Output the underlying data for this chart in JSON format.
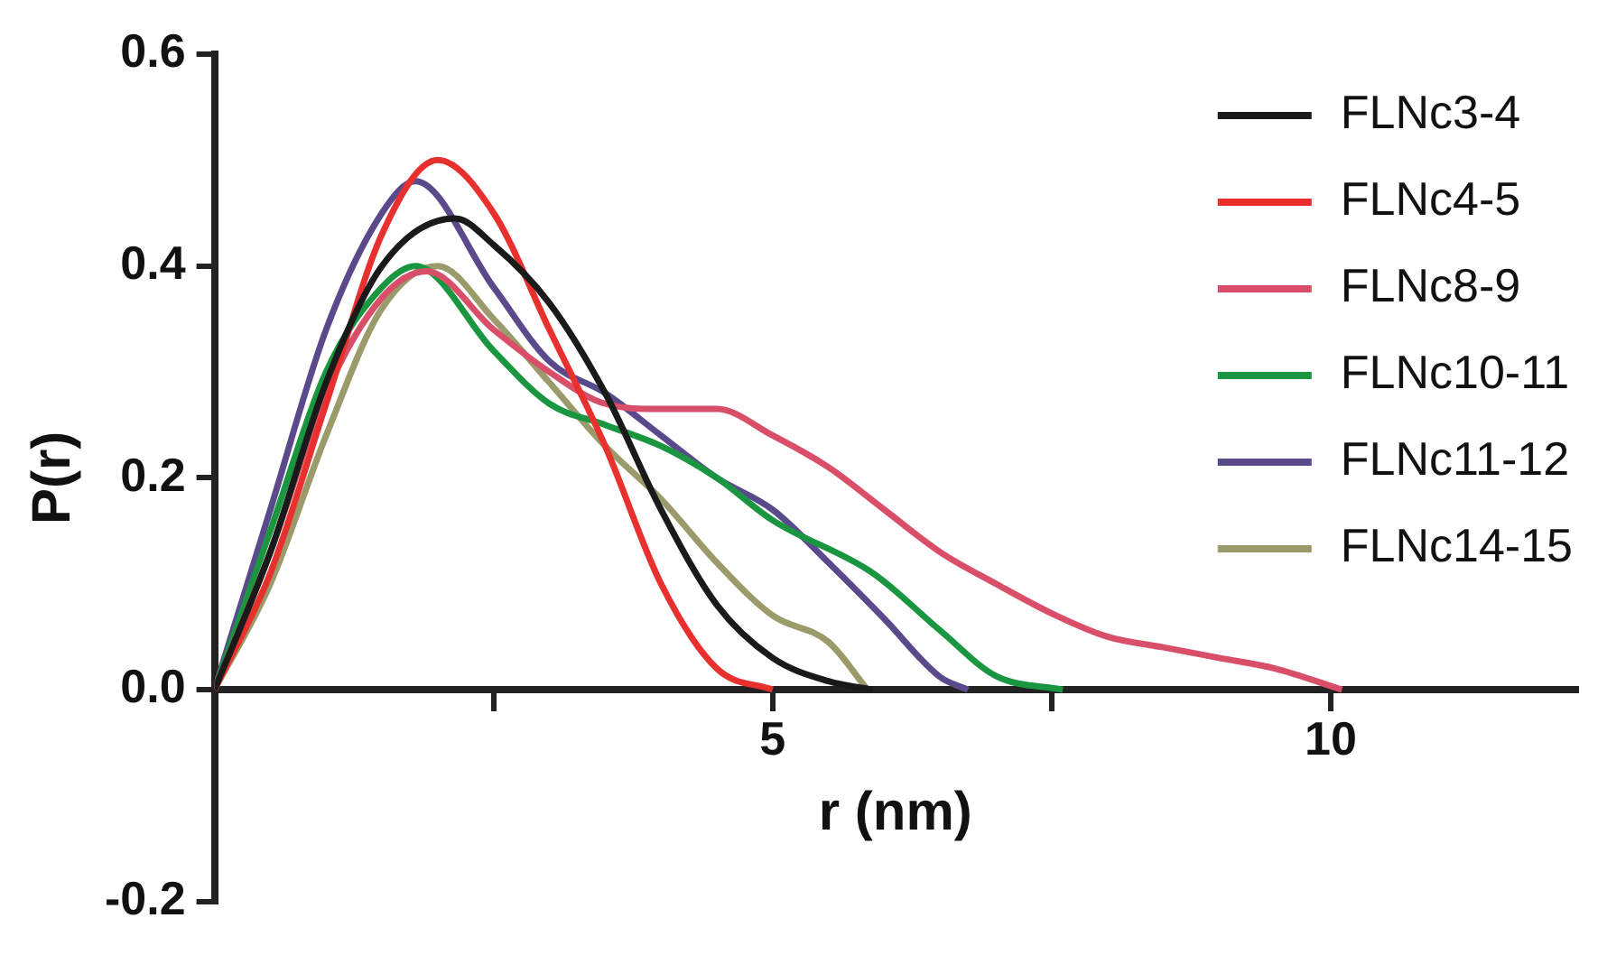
{
  "chart_data": {
    "type": "line",
    "xlabel": "r (nm)",
    "ylabel": "P(r)",
    "xlim": [
      0,
      12.2
    ],
    "ylim": [
      -0.2,
      0.6
    ],
    "xticks": [
      {
        "value": 2.5,
        "label": null
      },
      5,
      {
        "value": 7.5,
        "label": null
      },
      10
    ],
    "yticks": [
      -0.2,
      {
        "value": 0,
        "label": "0.0"
      },
      0.2,
      0.4,
      0.6
    ],
    "grid": false,
    "legend": "top right",
    "marker": "none",
    "line_style": "solid",
    "series": [
      {
        "name": "FLNc3-4",
        "color": "#1a1a1a",
        "x": [
          0,
          0.5,
          1,
          1.5,
          2.15,
          2.5,
          3,
          3.5,
          4,
          4.5,
          5,
          5.5,
          5.9
        ],
        "values": [
          0,
          0.13,
          0.29,
          0.4,
          0.445,
          0.42,
          0.365,
          0.28,
          0.17,
          0.08,
          0.03,
          0.008,
          0
        ]
      },
      {
        "name": "FLNc4-5",
        "color": "#e8312f",
        "x": [
          0,
          0.5,
          1,
          1.5,
          2,
          2.5,
          3,
          3.5,
          4,
          4.5,
          5
        ],
        "values": [
          0,
          0.11,
          0.27,
          0.43,
          0.5,
          0.45,
          0.34,
          0.23,
          0.1,
          0.02,
          0
        ]
      },
      {
        "name": "FLNc8-9",
        "color": "#d94f6a",
        "x": [
          0,
          0.5,
          1,
          1.5,
          1.9,
          2.5,
          3,
          3.5,
          4,
          4.5,
          5,
          5.5,
          6,
          6.5,
          7,
          7.5,
          8,
          8.5,
          9,
          9.5,
          10.1
        ],
        "values": [
          0,
          0.13,
          0.28,
          0.37,
          0.395,
          0.34,
          0.3,
          0.27,
          0.265,
          0.265,
          0.24,
          0.21,
          0.17,
          0.13,
          0.1,
          0.072,
          0.05,
          0.04,
          0.03,
          0.02,
          0
        ]
      },
      {
        "name": "FLNc10-11",
        "color": "#1a9641",
        "x": [
          0,
          0.5,
          1,
          1.5,
          1.8,
          2.5,
          3,
          3.5,
          4,
          4.5,
          5,
          5.9,
          6.5,
          7,
          7.6
        ],
        "values": [
          0,
          0.15,
          0.3,
          0.38,
          0.4,
          0.32,
          0.27,
          0.25,
          0.23,
          0.2,
          0.16,
          0.11,
          0.056,
          0.013,
          0
        ]
      },
      {
        "name": "FLNc11-12",
        "color": "#5b4a8b",
        "x": [
          0,
          0.5,
          1,
          1.5,
          1.8,
          2.5,
          3,
          3.5,
          4,
          4.5,
          5,
          5.5,
          6,
          6.5,
          6.75
        ],
        "values": [
          0,
          0.17,
          0.34,
          0.45,
          0.48,
          0.38,
          0.31,
          0.28,
          0.24,
          0.2,
          0.17,
          0.12,
          0.067,
          0.012,
          0
        ]
      },
      {
        "name": "FLNc14-15",
        "color": "#9a9a6a",
        "x": [
          0,
          0.5,
          1,
          1.5,
          2,
          2.5,
          3,
          3.5,
          4,
          4.5,
          5,
          5.5,
          5.85
        ],
        "values": [
          0,
          0.1,
          0.24,
          0.36,
          0.4,
          0.35,
          0.29,
          0.23,
          0.18,
          0.12,
          0.07,
          0.045,
          0
        ]
      }
    ]
  }
}
